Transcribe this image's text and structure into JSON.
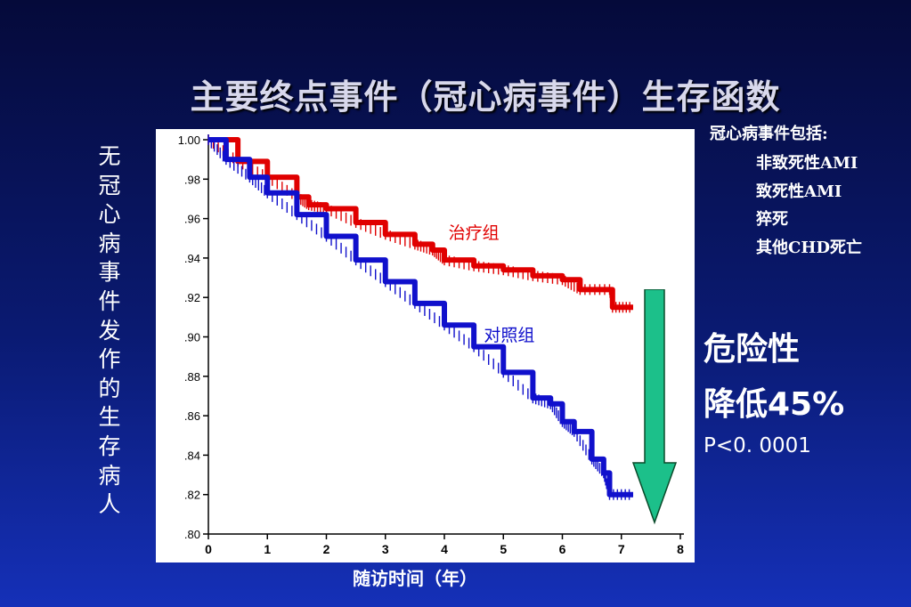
{
  "slide": {
    "title": "主要终点事件（冠心病事件）生存函数",
    "ylabel": "无冠心病事件发作的生存病人",
    "xlabel": "随访时间（年）",
    "events": {
      "header": "冠心病事件包括:",
      "items": [
        "非致死性AMI",
        "致死性AMI",
        "猝死",
        "其他CHD死亡"
      ]
    },
    "risk_line1": "危险性",
    "risk_line2": "降低45%",
    "pvalue": "P<0. 0001"
  },
  "colors": {
    "treatment": "#e00000",
    "control": "#1010cc",
    "arrow": "#1cc08a"
  },
  "chart_data": {
    "type": "line",
    "xlim": [
      0,
      8
    ],
    "ylim": [
      0.8,
      1.0
    ],
    "x_ticks": [
      0,
      1,
      2,
      3,
      4,
      5,
      6,
      7,
      8
    ],
    "y_ticks": [
      ".80",
      ".82",
      ".84",
      ".86",
      ".88",
      ".90",
      ".92",
      ".94",
      ".96",
      ".98",
      "1.00"
    ],
    "grid": false,
    "series": [
      {
        "name": "治疗组",
        "color": "#e00000",
        "x": [
          0,
          0.5,
          1,
          1.5,
          1.7,
          2,
          2.5,
          3,
          3.5,
          3.8,
          4,
          4.5,
          5,
          5.5,
          6,
          6.3,
          6.8,
          6.85,
          7.2
        ],
        "y": [
          1.0,
          0.989,
          0.981,
          0.971,
          0.967,
          0.965,
          0.958,
          0.952,
          0.947,
          0.944,
          0.939,
          0.936,
          0.934,
          0.931,
          0.929,
          0.924,
          0.924,
          0.915,
          0.915
        ]
      },
      {
        "name": "对照组",
        "color": "#1010cc",
        "x": [
          0,
          0.3,
          0.7,
          1,
          1.5,
          2,
          2.5,
          3,
          3.5,
          4,
          4.5,
          5,
          5.5,
          5.8,
          6,
          6.2,
          6.5,
          6.7,
          6.8,
          7.2
        ],
        "y": [
          1.0,
          0.99,
          0.981,
          0.973,
          0.962,
          0.951,
          0.939,
          0.928,
          0.917,
          0.906,
          0.895,
          0.882,
          0.869,
          0.866,
          0.857,
          0.852,
          0.838,
          0.831,
          0.82,
          0.82
        ]
      }
    ],
    "annotations": [
      {
        "text": "治疗组",
        "x": 4.5,
        "y": 0.95
      },
      {
        "text": "对照组",
        "x": 5.1,
        "y": 0.898
      }
    ]
  }
}
